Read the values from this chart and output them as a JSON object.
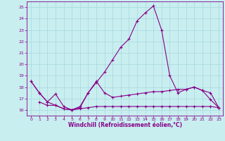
{
  "xlabel": "Windchill (Refroidissement éolien,°C)",
  "bg_color": "#c8eef0",
  "grid_color": "#a8d8dc",
  "line_color": "#880088",
  "x_ticks": [
    0,
    1,
    2,
    3,
    4,
    5,
    6,
    7,
    8,
    9,
    10,
    11,
    12,
    13,
    14,
    15,
    16,
    17,
    18,
    19,
    20,
    21,
    22,
    23
  ],
  "y_ticks": [
    16,
    17,
    18,
    19,
    20,
    21,
    22,
    23,
    24,
    25
  ],
  "xlim": [
    -0.5,
    23.5
  ],
  "ylim": [
    15.5,
    25.5
  ],
  "series1_x": [
    0,
    1,
    2,
    3,
    4,
    5,
    6,
    7,
    8,
    9,
    10,
    11,
    12,
    13,
    14,
    15,
    16,
    17,
    18,
    19,
    20,
    21,
    22,
    23
  ],
  "series1_y": [
    18.5,
    17.5,
    16.7,
    16.4,
    16.1,
    16.0,
    16.2,
    17.5,
    18.4,
    19.3,
    20.4,
    21.5,
    22.2,
    23.8,
    24.5,
    25.1,
    23.0,
    19.0,
    17.5,
    17.8,
    18.0,
    17.7,
    16.9,
    16.2
  ],
  "series2_x": [
    0,
    1,
    2,
    3,
    4,
    5,
    6,
    7,
    8,
    9,
    10,
    11,
    12,
    13,
    14,
    15,
    16,
    17,
    18,
    19,
    20,
    21,
    22,
    23
  ],
  "series2_y": [
    18.5,
    17.5,
    16.7,
    17.4,
    16.3,
    16.0,
    16.3,
    17.5,
    18.5,
    17.5,
    17.1,
    17.2,
    17.3,
    17.4,
    17.5,
    17.6,
    17.6,
    17.7,
    17.8,
    17.8,
    18.0,
    17.7,
    17.5,
    16.2
  ],
  "series3_x": [
    1,
    2,
    3,
    4,
    5,
    6,
    7,
    8,
    9,
    10,
    11,
    12,
    13,
    14,
    15,
    16,
    17,
    18,
    19,
    20,
    21,
    22,
    23
  ],
  "series3_y": [
    16.7,
    16.4,
    16.4,
    16.1,
    16.0,
    16.1,
    16.2,
    16.3,
    16.3,
    16.3,
    16.3,
    16.3,
    16.3,
    16.3,
    16.3,
    16.3,
    16.3,
    16.3,
    16.3,
    16.3,
    16.3,
    16.3,
    16.2
  ]
}
